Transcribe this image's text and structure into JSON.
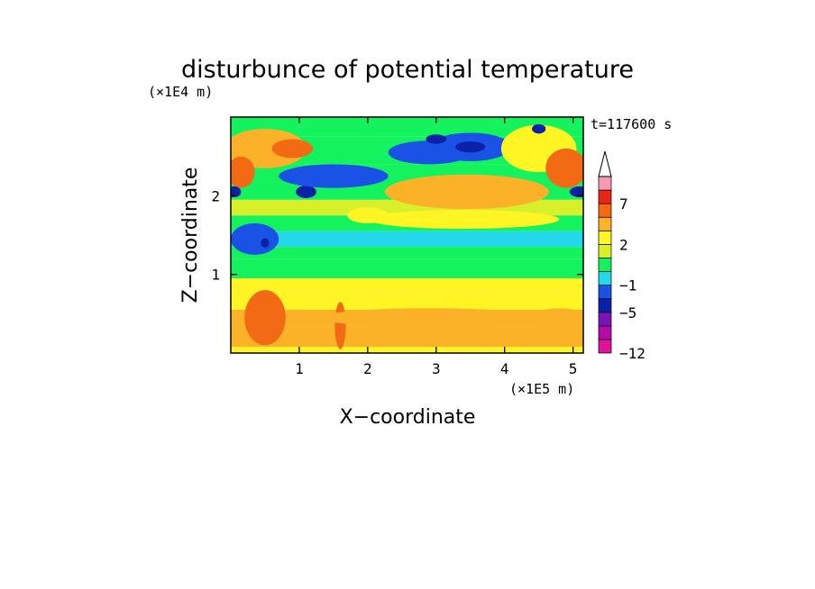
{
  "chart_data": {
    "type": "heatmap",
    "title": "disturbunce of potential temperature",
    "xlabel": "X−coordinate",
    "ylabel": "Z−coordinate",
    "x_scale_label": "(×1E5 m)",
    "y_scale_label": "(×1E4 m)",
    "time_label": "t=117600 s",
    "xlim": [
      0,
      5.15
    ],
    "ylim": [
      0,
      3.0
    ],
    "x_ticks": [
      1,
      2,
      3,
      4,
      5
    ],
    "x_tick_labels": [
      "1",
      "2",
      "3",
      "4",
      "5"
    ],
    "y_ticks": [
      1,
      2
    ],
    "y_tick_labels": [
      "1",
      "2"
    ],
    "colorbar": {
      "levels": [
        -12,
        -9,
        -7,
        -5,
        -3,
        -1,
        0,
        1,
        2,
        4,
        6,
        7,
        9,
        11
      ],
      "labeled_levels": [
        "7",
        "2",
        "−1",
        "−5",
        "−12"
      ],
      "labeled_values": [
        7,
        2,
        -1,
        -5,
        -12
      ],
      "colors": [
        "#e0129a",
        "#b60ba8",
        "#7a14b6",
        "#0c22a6",
        "#1a52e6",
        "#24d8ea",
        "#14f25e",
        "#d8f02c",
        "#fff424",
        "#fcb228",
        "#f26a14",
        "#e82618",
        "#f59ab4",
        "#ffffff"
      ],
      "extend": "max"
    },
    "bands": [
      {
        "z": [
          0.0,
          0.08
        ],
        "value": 3.5
      },
      {
        "z": [
          0.08,
          0.35
        ],
        "value": 5.0
      },
      {
        "z": [
          0.35,
          0.55
        ],
        "value": 4.5
      },
      {
        "z": [
          0.55,
          0.78
        ],
        "value": 3.0
      },
      {
        "z": [
          0.78,
          0.95
        ],
        "value": 2.2
      },
      {
        "z": [
          0.95,
          1.2
        ],
        "value": 0.5
      },
      {
        "z": [
          1.2,
          1.35
        ],
        "value": 0.6
      },
      {
        "z": [
          1.35,
          1.55
        ],
        "value": -0.5
      },
      {
        "z": [
          1.55,
          1.75
        ],
        "value": 0.5
      },
      {
        "z": [
          1.75,
          1.95
        ],
        "value": 1.5
      },
      {
        "z": [
          1.95,
          2.4
        ],
        "value": 0.4
      },
      {
        "z": [
          2.4,
          2.75
        ],
        "value": 0.5
      },
      {
        "z": [
          2.75,
          3.0
        ],
        "value": 0.3
      }
    ],
    "features": [
      {
        "x": 3.45,
        "z": 2.05,
        "rx": 1.2,
        "rz": 0.22,
        "value": 4.5
      },
      {
        "x": 3.5,
        "z": 2.05,
        "rx": 0.8,
        "rz": 0.12,
        "value": 5.5
      },
      {
        "x": 3.4,
        "z": 1.7,
        "rx": 1.4,
        "rz": 0.12,
        "value": 3.0
      },
      {
        "x": 2.9,
        "z": 2.55,
        "rx": 0.6,
        "rz": 0.15,
        "value": -1.5
      },
      {
        "x": 3.5,
        "z": 2.62,
        "rx": 0.6,
        "rz": 0.18,
        "value": -1.5
      },
      {
        "x": 3.0,
        "z": 2.72,
        "rx": 0.15,
        "rz": 0.06,
        "value": -5.0
      },
      {
        "x": 3.5,
        "z": 2.62,
        "rx": 0.22,
        "rz": 0.07,
        "value": -5.0
      },
      {
        "x": 4.5,
        "z": 2.6,
        "rx": 0.55,
        "rz": 0.3,
        "value": 3.5
      },
      {
        "x": 4.9,
        "z": 2.35,
        "rx": 0.3,
        "rz": 0.25,
        "value": 6.0
      },
      {
        "x": 4.5,
        "z": 2.85,
        "rx": 0.1,
        "rz": 0.06,
        "value": -5.0
      },
      {
        "x": 5.1,
        "z": 2.05,
        "rx": 0.15,
        "rz": 0.07,
        "value": -5.0
      },
      {
        "x": 0.5,
        "z": 2.6,
        "rx": 0.6,
        "rz": 0.25,
        "value": 5.0
      },
      {
        "x": 0.15,
        "z": 2.3,
        "rx": 0.2,
        "rz": 0.2,
        "value": 6.5
      },
      {
        "x": 0.9,
        "z": 2.6,
        "rx": 0.3,
        "rz": 0.12,
        "value": 6.0
      },
      {
        "x": 1.1,
        "z": 2.05,
        "rx": 0.15,
        "rz": 0.08,
        "value": -5.0
      },
      {
        "x": 0.05,
        "z": 2.05,
        "rx": 0.1,
        "rz": 0.07,
        "value": -5.0
      },
      {
        "x": 0.35,
        "z": 1.45,
        "rx": 0.35,
        "rz": 0.2,
        "value": -1.5
      },
      {
        "x": 0.5,
        "z": 1.4,
        "rx": 0.06,
        "rz": 0.06,
        "value": -5.0
      },
      {
        "x": 0.5,
        "z": 0.45,
        "rx": 0.3,
        "rz": 0.35,
        "value": 6.0
      },
      {
        "x": 1.6,
        "z": 0.35,
        "rx": 0.08,
        "rz": 0.3,
        "value": 6.0
      },
      {
        "x": 2.9,
        "z": 0.45,
        "rx": 1.6,
        "rz": 0.12,
        "value": 4.5
      },
      {
        "x": 4.8,
        "z": 0.45,
        "rx": 0.4,
        "rz": 0.12,
        "value": 4.5
      },
      {
        "x": 2.0,
        "z": 1.75,
        "rx": 0.3,
        "rz": 0.1,
        "value": 3.0
      },
      {
        "x": 1.5,
        "z": 2.25,
        "rx": 0.8,
        "rz": 0.15,
        "value": -1.5
      }
    ]
  }
}
